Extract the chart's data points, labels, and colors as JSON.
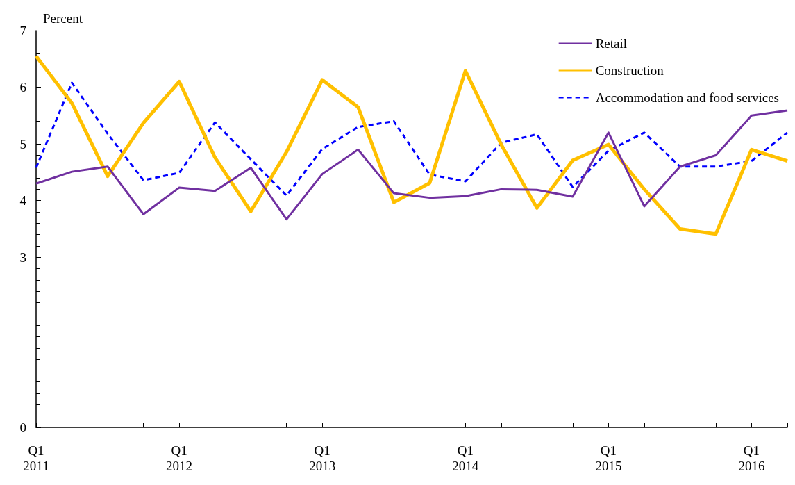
{
  "chart_data": {
    "type": "line",
    "ylabel": "Percent",
    "categories": [
      "Q1\n2011",
      null,
      null,
      null,
      "Q1\n2012",
      null,
      null,
      null,
      "Q1\n2013",
      null,
      null,
      null,
      "Q1\n2014",
      null,
      null,
      null,
      "Q1\n2015",
      null,
      null,
      null,
      "Q1\n2016",
      null
    ],
    "series": [
      {
        "name": "Retail",
        "color": "#7030a0",
        "line_style": "solid",
        "values": [
          4.3,
          4.51,
          4.6,
          3.76,
          4.23,
          4.17,
          4.58,
          3.67,
          4.47,
          4.9,
          4.13,
          4.05,
          4.08,
          4.2,
          4.19,
          4.07,
          5.2,
          3.9,
          4.6,
          4.8,
          5.5,
          5.59
        ]
      },
      {
        "name": "Construction",
        "color": "#ffc000",
        "line_style": "solid",
        "values": [
          6.55,
          5.72,
          4.43,
          5.37,
          6.1,
          4.76,
          3.81,
          4.86,
          6.13,
          5.65,
          3.97,
          4.31,
          6.29,
          4.99,
          3.87,
          4.71,
          4.99,
          4.2,
          3.5,
          3.41,
          4.9,
          4.7
        ]
      },
      {
        "name": "Accommodation and food services",
        "color": "#0000ff",
        "line_style": "dashed",
        "values": [
          4.58,
          6.08,
          5.18,
          4.36,
          4.49,
          5.38,
          4.73,
          4.09,
          4.91,
          5.3,
          5.4,
          4.46,
          4.34,
          5.02,
          5.17,
          4.24,
          4.88,
          5.2,
          4.6,
          4.6,
          4.7,
          5.2
        ]
      }
    ],
    "ylim": [
      0,
      7
    ],
    "yticks": [
      0,
      3,
      4,
      5,
      6,
      7
    ],
    "grid": false,
    "legend": "top right",
    "marker": "none"
  }
}
